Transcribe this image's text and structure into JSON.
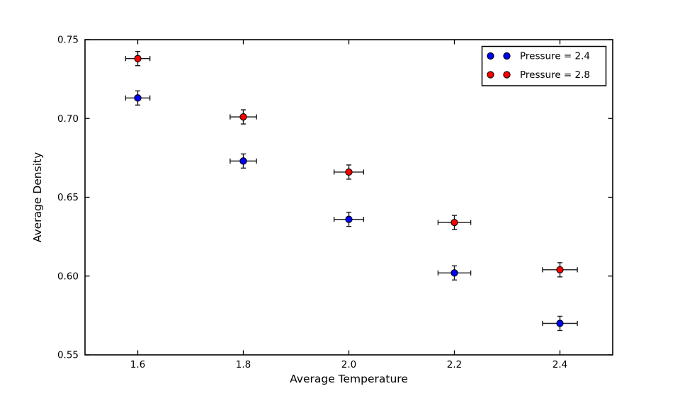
{
  "chart_data": {
    "type": "scatter",
    "title": "",
    "xlabel": "Average Temperature",
    "ylabel": "Average Density",
    "xlim": [
      1.5,
      2.5
    ],
    "ylim": [
      0.55,
      0.75
    ],
    "xtick_values": [
      1.6,
      1.8,
      2.0,
      2.2,
      2.4
    ],
    "xtick_labels": [
      "1.6",
      "1.8",
      "2.0",
      "2.2",
      "2.4"
    ],
    "ytick_values": [
      0.55,
      0.6,
      0.65,
      0.7,
      0.75
    ],
    "ytick_labels": [
      "0.55",
      "0.60",
      "0.65",
      "0.70",
      "0.75"
    ],
    "grid": false,
    "legend_position": "upper right",
    "colors": {
      "background": "#ffffff",
      "axis": "#000000",
      "errorbar": "#1a1a1a",
      "marker_edge": "#000000"
    },
    "series": [
      {
        "name": "Pressure = 2.4",
        "color": "#0000ff",
        "marker": "circle",
        "x": [
          1.6,
          1.8,
          2.0,
          2.2,
          2.4
        ],
        "y": [
          0.713,
          0.673,
          0.636,
          0.602,
          0.57
        ],
        "xerr": [
          0.023,
          0.025,
          0.028,
          0.031,
          0.033
        ],
        "yerr": [
          0.0045,
          0.0045,
          0.0045,
          0.0045,
          0.0045
        ]
      },
      {
        "name": "Pressure = 2.8",
        "color": "#ff0000",
        "marker": "circle",
        "x": [
          1.6,
          1.8,
          2.0,
          2.2,
          2.4
        ],
        "y": [
          0.738,
          0.701,
          0.666,
          0.634,
          0.604
        ],
        "xerr": [
          0.023,
          0.025,
          0.028,
          0.031,
          0.033
        ],
        "yerr": [
          0.0045,
          0.0045,
          0.0045,
          0.0045,
          0.0045
        ]
      }
    ]
  }
}
